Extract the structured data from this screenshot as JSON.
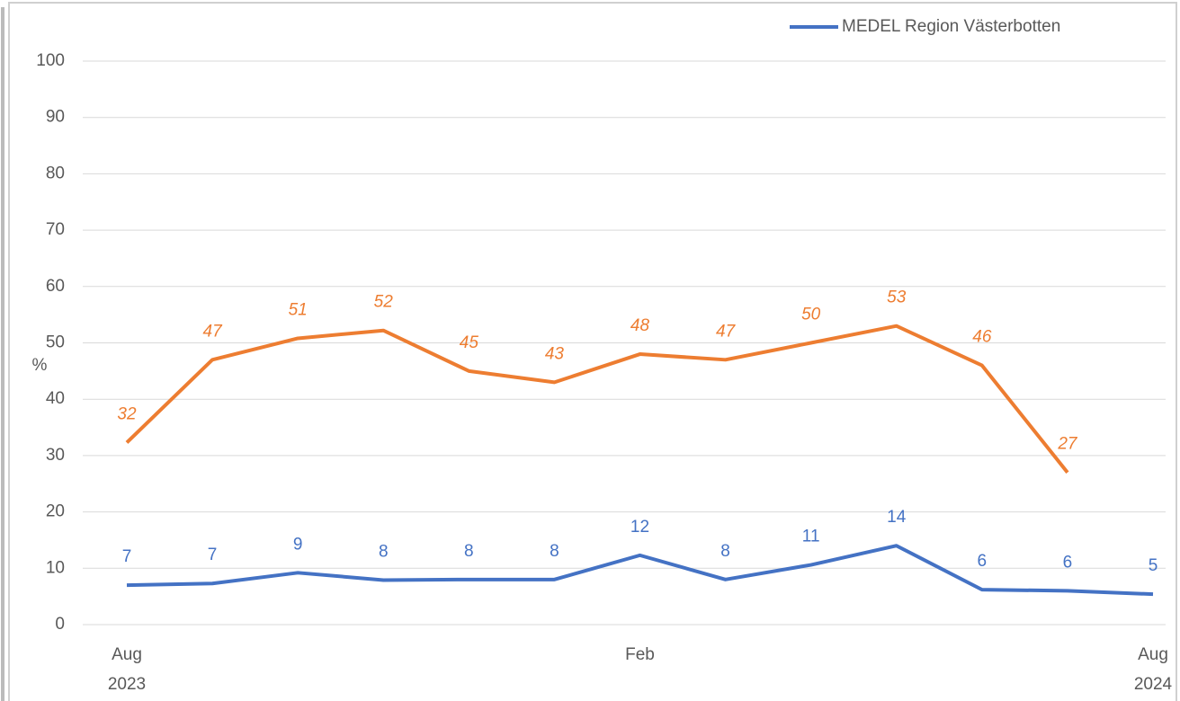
{
  "chart_data": {
    "type": "line",
    "y_label": "%",
    "categories": [
      "Aug 2023",
      null,
      null,
      null,
      null,
      null,
      "Feb",
      null,
      null,
      null,
      null,
      null,
      "Aug 2024"
    ],
    "series": [
      {
        "name": "MEDEL Region Västerbotten",
        "color": "#4472c4",
        "values": [
          7.0,
          7.3,
          9.2,
          7.9,
          8.0,
          8.0,
          12.3,
          8.0,
          10.6,
          14.0,
          6.2,
          6.0,
          5.4
        ],
        "value_labels": [
          "7",
          "7",
          "9",
          "8",
          "8",
          "8",
          "12",
          "8",
          "11",
          "14",
          "6",
          "6",
          "5"
        ]
      },
      {
        "color": "#ed7d31",
        "values": [
          32.3,
          47,
          50.8,
          52.2,
          45,
          43,
          48,
          47,
          50,
          53,
          46,
          27,
          null
        ],
        "value_labels": [
          "32",
          "47",
          "51",
          "52",
          "45",
          "43",
          "48",
          "47",
          "50",
          "53",
          "46",
          "27",
          null
        ]
      }
    ],
    "ylim": [
      0,
      100
    ],
    "yticks": [
      0,
      10,
      20,
      30,
      40,
      50,
      60,
      70,
      80,
      90,
      100
    ],
    "grid": true,
    "legend": "top-right"
  }
}
